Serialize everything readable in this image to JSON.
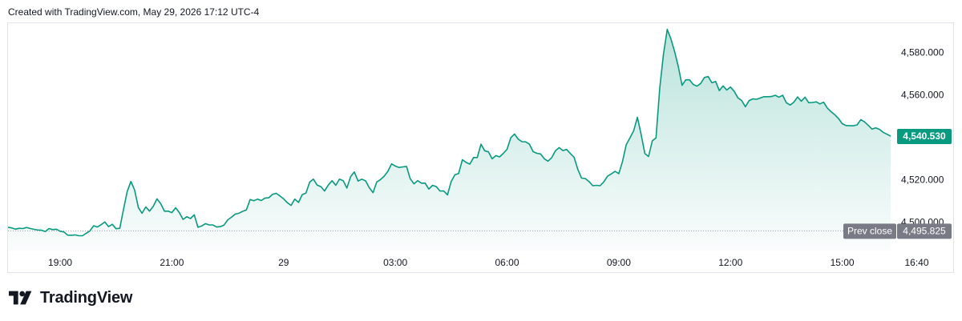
{
  "header": {
    "credit": "Created with TradingView.com, May 29, 2026 17:12 UTC-4"
  },
  "brand": {
    "name": "TradingView",
    "logo_icon": "tradingview-logo-icon"
  },
  "colors": {
    "line": "#089981",
    "fill_top": "#089981",
    "prev_close_bg": "#787b86",
    "price_tag_bg": "#089981"
  },
  "chart_data": {
    "type": "area",
    "x_tick_labels": [
      "19:00",
      "21:00",
      "29",
      "03:00",
      "06:00",
      "09:00",
      "12:00",
      "15:00",
      "16:40"
    ],
    "x_tick_index": [
      14,
      44,
      74,
      104,
      134,
      164,
      194,
      224,
      244
    ],
    "y_ticks": [
      4500,
      4520,
      4540,
      4560,
      4580
    ],
    "y_tick_labels": [
      "4,500.000",
      "4,520.000",
      "4,540.000",
      "4,560.000",
      "4,580.000"
    ],
    "ylim": [
      4486.5,
      4593.8
    ],
    "series": [
      {
        "values": [
          4497.5,
          4497.2,
          4496.6,
          4497.0,
          4496.9,
          4497.4,
          4496.9,
          4496.5,
          4496.2,
          4496.1,
          4495.5,
          4496.9,
          4496.4,
          4496.6,
          4495.6,
          4495.3,
          4493.8,
          4493.7,
          4493.9,
          4493.5,
          4493.5,
          4494.7,
          4495.8,
          4498.2,
          4497.6,
          4498.7,
          4500.0,
          4497.8,
          4498.9,
          4496.8,
          4497.0,
          4505.8,
          4514.4,
          4519.1,
          4515.1,
          4506.8,
          4504.1,
          4507.1,
          4505.1,
          4507.4,
          4510.9,
          4508.6,
          4505.1,
          4505.1,
          4504.4,
          4506.7,
          4504.4,
          4501.2,
          4502.5,
          4501.6,
          4503.4,
          4497.5,
          4498.1,
          4499.2,
          4498.6,
          4498.6,
          4497.6,
          4497.8,
          4498.5,
          4501.0,
          4502.2,
          4503.7,
          4504.1,
          4505.0,
          4505.7,
          4510.6,
          4510.0,
          4510.8,
          4510.1,
          4511.3,
          4511.4,
          4513.0,
          4513.5,
          4512.3,
          4510.9,
          4509.1,
          4507.8,
          4510.8,
          4509.2,
          4512.9,
          4513.6,
          4518.8,
          4520.2,
          4517.4,
          4516.7,
          4514.6,
          4517.4,
          4519.5,
          4517.3,
          4520.2,
          4519.5,
          4516.0,
          4521.4,
          4523.6,
          4519.3,
          4520.2,
          4519.4,
          4516.2,
          4513.8,
          4518.8,
          4520.0,
          4521.6,
          4523.9,
          4527.4,
          4526.4,
          4525.7,
          4526.0,
          4526.2,
          4520.4,
          4518.0,
          4519.5,
          4518.3,
          4518.3,
          4515.5,
          4517.3,
          4516.7,
          4514.6,
          4514.6,
          4512.8,
          4519.1,
          4522.3,
          4522.9,
          4529.4,
          4528.1,
          4527.3,
          4530.4,
          4530.4,
          4536.7,
          4533.6,
          4533.1,
          4529.8,
          4531.3,
          4530.7,
          4532.4,
          4534.3,
          4539.8,
          4541.5,
          4539.1,
          4537.9,
          4537.8,
          4536.7,
          4533.2,
          4532.4,
          4532.1,
          4529.8,
          4528.7,
          4530.4,
          4533.6,
          4535.1,
          4533.7,
          4534.2,
          4532.3,
          4530.5,
          4524.8,
          4520.7,
          4520.5,
          4519.1,
          4517.1,
          4517.3,
          4517.1,
          4519.0,
          4521.6,
          4522.7,
          4523.9,
          4522.8,
          4528.5,
          4536.5,
          4539.7,
          4543.1,
          4549.4,
          4541.4,
          4532.3,
          4530.9,
          4538.3,
          4539.7,
          4563.3,
          4579.1,
          4590.9,
          4586.4,
          4580.3,
          4573.2,
          4564.5,
          4567.1,
          4567.1,
          4564.9,
          4564.1,
          4565.4,
          4568.2,
          4568.6,
          4565.7,
          4566.3,
          4562.0,
          4564.2,
          4562.3,
          4563.7,
          4561.6,
          4558.6,
          4557.3,
          4554.4,
          4557.3,
          4558.1,
          4557.9,
          4558.5,
          4559.1,
          4559.1,
          4559.2,
          4559.8,
          4558.9,
          4559.8,
          4556.3,
          4555.2,
          4556.5,
          4559.0,
          4557.0,
          4558.9,
          4556.3,
          4556.4,
          4556.7,
          4555.7,
          4556.5,
          4553.8,
          4552.0,
          4550.6,
          4548.8,
          4546.4,
          4545.5,
          4545.4,
          4545.4,
          4545.8,
          4548.3,
          4547.2,
          4545.6,
          4543.8,
          4544.4,
          4543.7,
          4542.3,
          4541.4,
          4540.53
        ]
      }
    ],
    "last_price_label": "4,540.530",
    "prev_close": 4495.825,
    "prev_close_title": "Prev close",
    "prev_close_label": "4,495.825"
  }
}
